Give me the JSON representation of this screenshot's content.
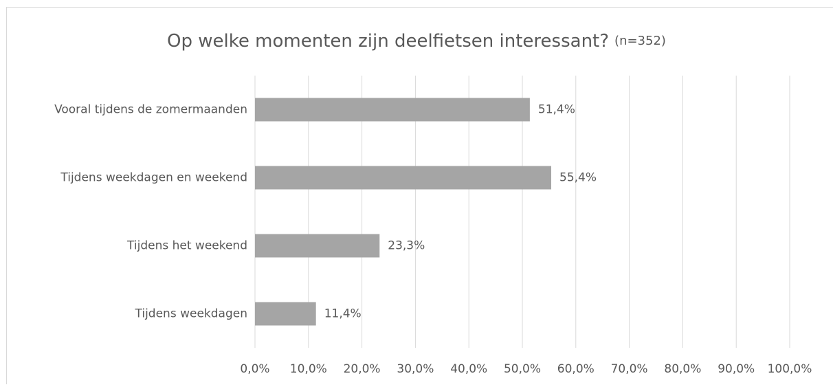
{
  "chart_data": {
    "type": "hbar",
    "title": "Op welke momenten zijn deelfietsen interessant?",
    "subtitle": "(n=352)",
    "categories": [
      "Vooral tijdens de zomermaanden",
      "Tijdens weekdagen en weekend",
      "Tijdens het weekend",
      "Tijdens weekdagen"
    ],
    "values": [
      51.4,
      55.4,
      23.3,
      11.4
    ],
    "value_labels": [
      "51,4%",
      "55,4%",
      "23,3%",
      "11,4%"
    ],
    "color": "#a5a5a5",
    "xlim": [
      0,
      100
    ],
    "xticks": [
      {
        "value": 0,
        "label": "0,0%"
      },
      {
        "value": 10,
        "label": "10,0%"
      },
      {
        "value": 20,
        "label": "20,0%"
      },
      {
        "value": 30,
        "label": "30,0%"
      },
      {
        "value": 40,
        "label": "40,0%"
      },
      {
        "value": 50,
        "label": "50,0%"
      },
      {
        "value": 60,
        "label": "60,0%"
      },
      {
        "value": 70,
        "label": "70,0%"
      },
      {
        "value": 80,
        "label": "80,0%"
      },
      {
        "value": 90,
        "label": "90,0%"
      },
      {
        "value": 100,
        "label": "100,0%"
      }
    ],
    "grid": true
  }
}
